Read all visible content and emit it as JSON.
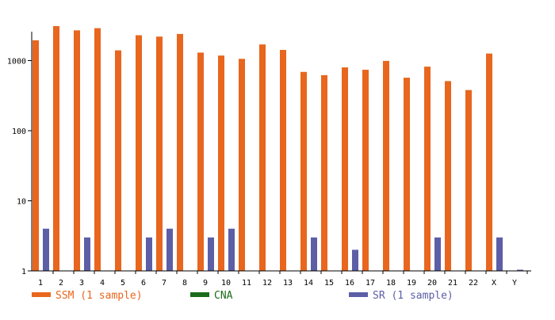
{
  "chart_data": {
    "type": "bar",
    "title": "",
    "xlabel": "",
    "ylabel": "",
    "y_scale": "log",
    "ylim": [
      1,
      3000
    ],
    "y_ticks": [
      {
        "value": 1,
        "label": "1"
      },
      {
        "value": 10,
        "label": "10"
      },
      {
        "value": 100,
        "label": "100"
      },
      {
        "value": 1000,
        "label": "1000"
      }
    ],
    "grid": false,
    "legend_position": "bottom",
    "categories": [
      "1",
      "2",
      "3",
      "4",
      "5",
      "6",
      "7",
      "8",
      "9",
      "10",
      "11",
      "12",
      "13",
      "14",
      "15",
      "16",
      "17",
      "18",
      "19",
      "20",
      "21",
      "22",
      "X",
      "Y"
    ],
    "series": [
      {
        "name": "SSM (1 sample)",
        "color": "#e8661e",
        "values": [
          1950,
          3100,
          2700,
          2900,
          1400,
          2300,
          2200,
          2400,
          1300,
          1180,
          1060,
          1700,
          1420,
          690,
          620,
          800,
          740,
          990,
          570,
          820,
          510,
          380,
          1260,
          null
        ]
      },
      {
        "name": "CNA",
        "color": "#1a6b1a",
        "values": [
          null,
          null,
          null,
          null,
          null,
          null,
          null,
          null,
          null,
          null,
          null,
          null,
          null,
          null,
          null,
          null,
          null,
          null,
          null,
          null,
          null,
          null,
          null,
          null
        ]
      },
      {
        "name": "SR (1 sample)",
        "color": "#5c5ea6",
        "values": [
          4,
          null,
          3,
          null,
          null,
          3,
          4,
          null,
          3,
          4,
          null,
          null,
          null,
          3,
          null,
          2,
          null,
          null,
          null,
          3,
          null,
          null,
          3,
          1
        ]
      }
    ]
  }
}
